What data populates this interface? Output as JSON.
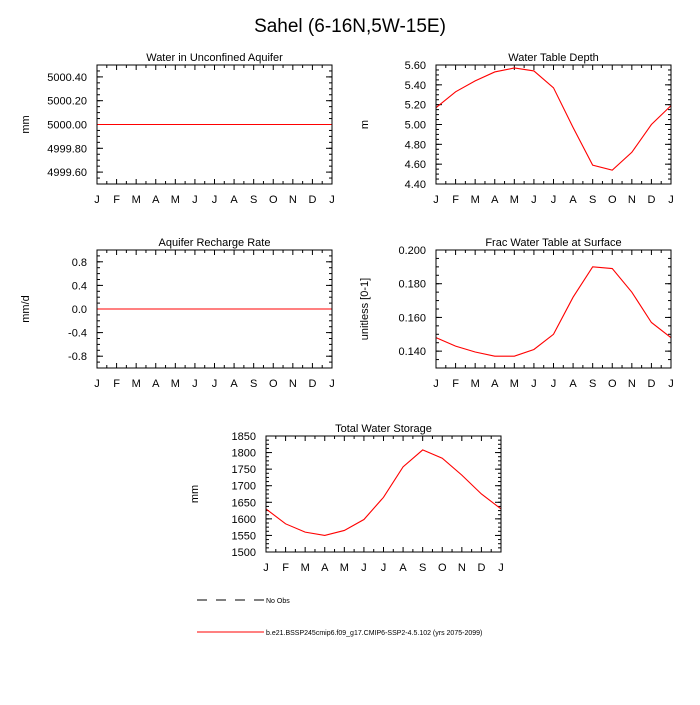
{
  "title": "Sahel (6-16N,5W-15E)",
  "colors": {
    "series": "#ff0000",
    "axis": "#000000"
  },
  "legend": {
    "items": [
      {
        "label": "No Obs",
        "style": "dashed",
        "color": "#000000"
      },
      {
        "label": "b.e21.BSSP245cmip6.f09_g17.CMIP6-SSP2-4.5.102 (yrs 2075-2099)",
        "style": "solid",
        "color": "#ff0000"
      }
    ]
  },
  "chart_data": [
    {
      "type": "line",
      "title": "Water in Unconfined Aquifer",
      "ylabel": "mm",
      "categories": [
        "J",
        "F",
        "M",
        "A",
        "M",
        "J",
        "J",
        "A",
        "S",
        "O",
        "N",
        "D",
        "J"
      ],
      "ylim": [
        4999.5,
        5000.5
      ],
      "yticks": [
        4999.6,
        4999.8,
        5000.0,
        5000.2,
        5000.4
      ],
      "ytick_labels": [
        "4999.60",
        "4999.80",
        "5000.00",
        "5000.20",
        "5000.40"
      ],
      "series": [
        {
          "name": "b.e21.BSSP245cmip6.f09_g17.CMIP6-SSP2-4.5.102",
          "values": [
            5000,
            5000,
            5000,
            5000,
            5000,
            5000,
            5000,
            5000,
            5000,
            5000,
            5000,
            5000,
            5000
          ]
        }
      ]
    },
    {
      "type": "line",
      "title": "Water Table Depth",
      "ylabel": "m",
      "categories": [
        "J",
        "F",
        "M",
        "A",
        "M",
        "J",
        "J",
        "A",
        "S",
        "O",
        "N",
        "D",
        "J"
      ],
      "ylim": [
        4.4,
        5.6
      ],
      "yticks": [
        4.4,
        4.6,
        4.8,
        5.0,
        5.2,
        5.4,
        5.6
      ],
      "ytick_labels": [
        "4.40",
        "4.60",
        "4.80",
        "5.00",
        "5.20",
        "5.40",
        "5.60"
      ],
      "series": [
        {
          "name": "b.e21.BSSP245cmip6.f09_g17.CMIP6-SSP2-4.5.102",
          "values": [
            5.17,
            5.33,
            5.44,
            5.53,
            5.57,
            5.54,
            5.37,
            4.97,
            4.59,
            4.54,
            4.72,
            5.0,
            5.19
          ]
        }
      ]
    },
    {
      "type": "line",
      "title": "Aquifer Recharge Rate",
      "ylabel": "mm/d",
      "categories": [
        "J",
        "F",
        "M",
        "A",
        "M",
        "J",
        "J",
        "A",
        "S",
        "O",
        "N",
        "D",
        "J"
      ],
      "ylim": [
        -1.0,
        1.0
      ],
      "yticks": [
        -0.8,
        -0.4,
        0.0,
        0.4,
        0.8
      ],
      "ytick_labels": [
        "-0.8",
        "-0.4",
        "0.0",
        "0.4",
        "0.8"
      ],
      "series": [
        {
          "name": "b.e21.BSSP245cmip6.f09_g17.CMIP6-SSP2-4.5.102",
          "values": [
            0,
            0,
            0,
            0,
            0,
            0,
            0,
            0,
            0,
            0,
            0,
            0,
            0
          ]
        }
      ]
    },
    {
      "type": "line",
      "title": "Frac Water Table at Surface",
      "ylabel": "unitless [0-1]",
      "categories": [
        "J",
        "F",
        "M",
        "A",
        "M",
        "J",
        "J",
        "A",
        "S",
        "O",
        "N",
        "D",
        "J"
      ],
      "ylim": [
        0.13,
        0.2
      ],
      "yticks": [
        0.14,
        0.16,
        0.18,
        0.2
      ],
      "ytick_labels": [
        "0.140",
        "0.160",
        "0.180",
        "0.200"
      ],
      "series": [
        {
          "name": "b.e21.BSSP245cmip6.f09_g17.CMIP6-SSP2-4.5.102",
          "values": [
            0.148,
            0.143,
            0.1395,
            0.137,
            0.137,
            0.141,
            0.15,
            0.172,
            0.19,
            0.189,
            0.175,
            0.157,
            0.148
          ]
        }
      ]
    },
    {
      "type": "line",
      "title": "Total Water Storage",
      "ylabel": "mm",
      "categories": [
        "J",
        "F",
        "M",
        "A",
        "M",
        "J",
        "J",
        "A",
        "S",
        "O",
        "N",
        "D",
        "J"
      ],
      "ylim": [
        1500,
        1850
      ],
      "yticks": [
        1500,
        1550,
        1600,
        1650,
        1700,
        1750,
        1800,
        1850
      ],
      "ytick_labels": [
        "1500",
        "1550",
        "1600",
        "1650",
        "1700",
        "1750",
        "1800",
        "1850"
      ],
      "series": [
        {
          "name": "b.e21.BSSP245cmip6.f09_g17.CMIP6-SSP2-4.5.102",
          "values": [
            1630,
            1585,
            1560,
            1550,
            1565,
            1598,
            1665,
            1757,
            1808,
            1783,
            1732,
            1675,
            1630
          ]
        }
      ]
    }
  ]
}
